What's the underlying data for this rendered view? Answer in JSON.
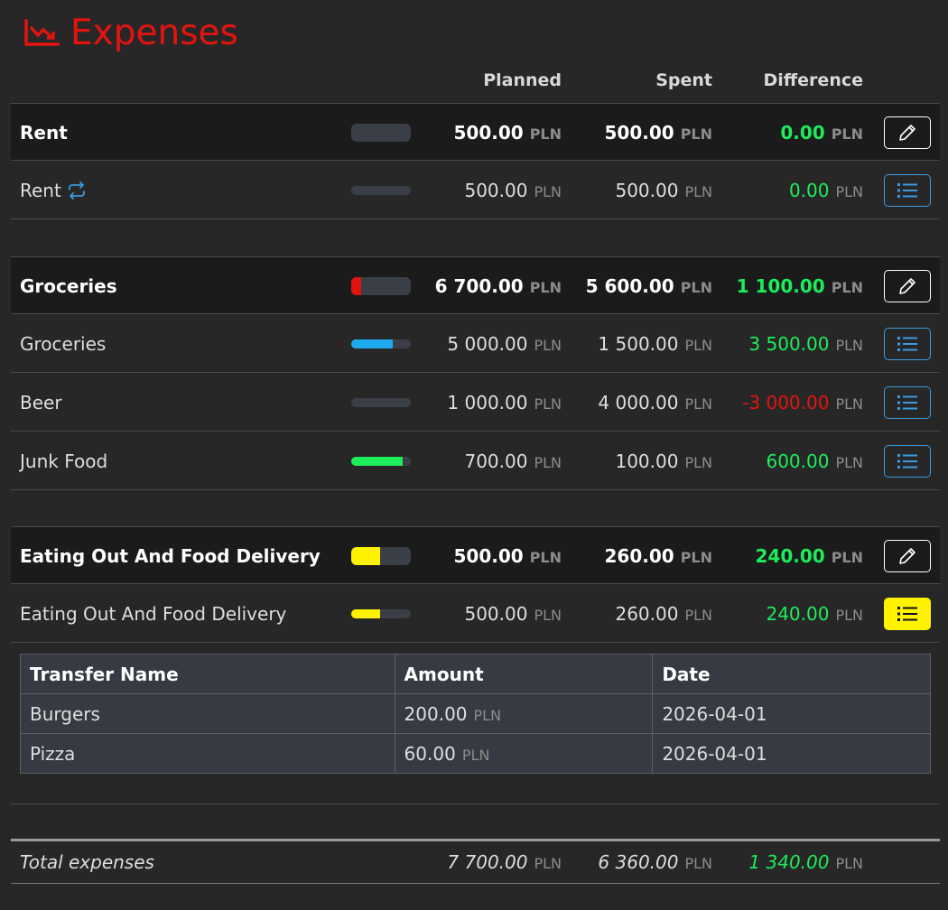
{
  "title": "Expenses",
  "currency": "PLN",
  "headers": {
    "planned": "Planned",
    "spent": "Spent",
    "difference": "Difference"
  },
  "colors": {
    "accent_red": "#e3140f",
    "positive": "#1ded5b",
    "negative": "#e3140f",
    "bar_blue": "#1eaaf0",
    "bar_yellow": "#fff200",
    "bar_green": "#1ded5b"
  },
  "groups": [
    {
      "name": "Rent",
      "planned": "500.00",
      "spent": "500.00",
      "difference": "0.00",
      "progress": 0,
      "items": [
        {
          "name": "Rent",
          "recurring": true,
          "planned": "500.00",
          "spent": "500.00",
          "difference": "0.00",
          "progress": 0
        }
      ]
    },
    {
      "name": "Groceries",
      "planned": "6 700.00",
      "spent": "5 600.00",
      "difference": "1 100.00",
      "progress": 0.16,
      "items": [
        {
          "name": "Groceries",
          "planned": "5 000.00",
          "spent": "1 500.00",
          "difference": "3 500.00",
          "progress": 0.7
        },
        {
          "name": "Beer",
          "planned": "1 000.00",
          "spent": "4 000.00",
          "difference": "-3 000.00",
          "progress": 0
        },
        {
          "name": "Junk Food",
          "planned": "700.00",
          "spent": "100.00",
          "difference": "600.00",
          "progress": 0.86
        }
      ]
    },
    {
      "name": "Eating Out And Food Delivery",
      "planned": "500.00",
      "spent": "260.00",
      "difference": "240.00",
      "progress": 0.48,
      "items": [
        {
          "name": "Eating Out And Food Delivery",
          "planned": "500.00",
          "spent": "260.00",
          "difference": "240.00",
          "progress": 0.48
        }
      ]
    }
  ],
  "transfers": {
    "headers": {
      "name": "Transfer Name",
      "amount": "Amount",
      "date": "Date"
    },
    "rows": [
      {
        "name": "Burgers",
        "amount": "200.00",
        "date": "2026-04-01"
      },
      {
        "name": "Pizza",
        "amount": "60.00",
        "date": "2026-04-01"
      }
    ]
  },
  "total": {
    "label": "Total expenses",
    "planned": "7 700.00",
    "spent": "6 360.00",
    "difference": "1 340.00"
  }
}
